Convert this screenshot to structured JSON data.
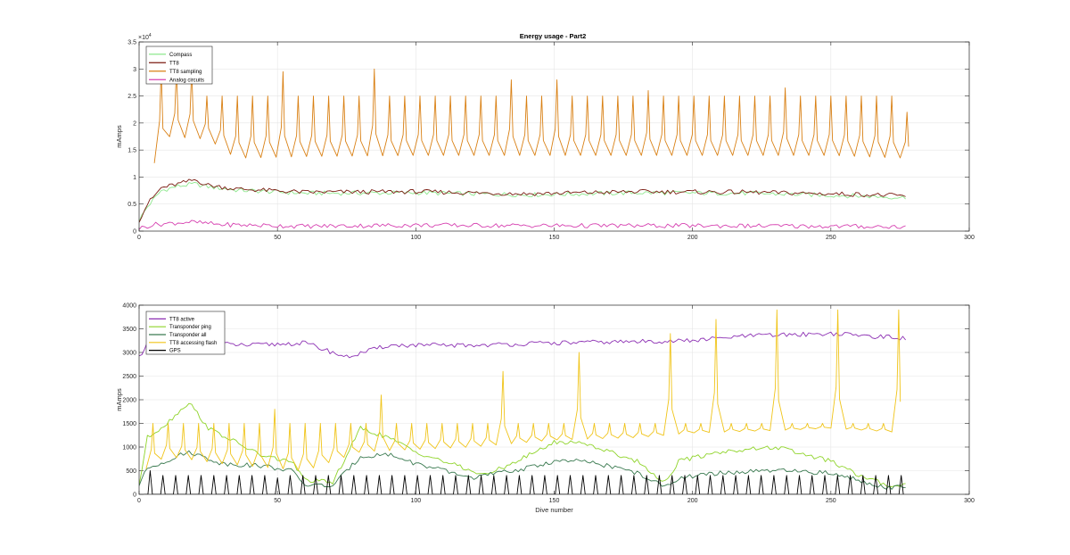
{
  "figure": {
    "title": "Energy usage - Part2"
  },
  "chart_data": [
    {
      "type": "line",
      "title": "Energy usage - Part2",
      "xlabel": "",
      "ylabel": "mAmps",
      "xlim": [
        0,
        300
      ],
      "ylim": [
        0,
        35000
      ],
      "x_ticks": [
        "0",
        "50",
        "100",
        "150",
        "200",
        "250",
        "300"
      ],
      "y_ticks": [
        "0",
        "0.5",
        "1",
        "1.5",
        "2",
        "2.5",
        "3",
        "3.5"
      ],
      "y_exponent": {
        "base": "×10",
        "power": "4"
      },
      "grid": true,
      "legend_position": "top-left",
      "series": [
        {
          "name": "Compass",
          "color": "#8ee88e",
          "shape": "smooth",
          "points": [
            [
              0,
              2000
            ],
            [
              3,
              4500
            ],
            [
              8,
              7500
            ],
            [
              14,
              8300
            ],
            [
              20,
              8700
            ],
            [
              25,
              8200
            ],
            [
              35,
              7600
            ],
            [
              60,
              7000
            ],
            [
              100,
              7100
            ],
            [
              140,
              6700
            ],
            [
              180,
              7100
            ],
            [
              220,
              7000
            ],
            [
              260,
              6500
            ],
            [
              277,
              6200
            ]
          ]
        },
        {
          "name": "TT8",
          "color": "#7b1c12",
          "shape": "smooth",
          "points": [
            [
              0,
              2000
            ],
            [
              3,
              5000
            ],
            [
              8,
              8000
            ],
            [
              14,
              8700
            ],
            [
              20,
              9500
            ],
            [
              25,
              8500
            ],
            [
              35,
              7800
            ],
            [
              60,
              7200
            ],
            [
              100,
              7300
            ],
            [
              140,
              6900
            ],
            [
              180,
              7300
            ],
            [
              220,
              7200
            ],
            [
              260,
              6800
            ],
            [
              277,
              6500
            ]
          ]
        },
        {
          "name": "TT8 sampling",
          "color": "#d98014",
          "shape": "spiky",
          "baseline": [
            [
              0,
              5000
            ],
            [
              5,
              12000
            ],
            [
              10,
              17500
            ],
            [
              25,
              17000
            ],
            [
              35,
              13500
            ],
            [
              60,
              13800
            ],
            [
              100,
              14000
            ],
            [
              150,
              14000
            ],
            [
              200,
              14000
            ],
            [
              250,
              14000
            ],
            [
              277,
              13500
            ]
          ],
          "peaks": [
            [
              10,
              30000
            ],
            [
              15,
              30000
            ],
            [
              20,
              30000
            ],
            [
              30,
              25000
            ],
            [
              51,
              29500
            ],
            [
              86,
              30000
            ],
            [
              136,
              28000
            ],
            [
              152,
              28000
            ],
            [
              184,
              26000
            ],
            [
              236,
              26500
            ],
            [
              277,
              22000
            ]
          ],
          "peak_default": 25000,
          "period": 5.5,
          "start": 8,
          "end": 278
        },
        {
          "name": "Analog circuits",
          "color": "#d640b0",
          "shape": "smooth",
          "points": [
            [
              0,
              500
            ],
            [
              5,
              1200
            ],
            [
              18,
              1700
            ],
            [
              30,
              1200
            ],
            [
              60,
              900
            ],
            [
              100,
              1100
            ],
            [
              150,
              1000
            ],
            [
              200,
              1000
            ],
            [
              250,
              900
            ],
            [
              277,
              800
            ]
          ]
        }
      ]
    },
    {
      "type": "line",
      "title": "",
      "xlabel": "Dive number",
      "ylabel": "mAmps",
      "xlim": [
        0,
        300
      ],
      "ylim": [
        0,
        4000
      ],
      "x_ticks": [
        "0",
        "50",
        "100",
        "150",
        "200",
        "250",
        "300"
      ],
      "y_ticks": [
        "0",
        "500",
        "1000",
        "1500",
        "2000",
        "2500",
        "3000",
        "3500",
        "4000"
      ],
      "grid": true,
      "legend_position": "top-left",
      "series": [
        {
          "name": "TT8 active",
          "color": "#8c2fb3",
          "shape": "smooth",
          "points": [
            [
              0,
              2900
            ],
            [
              3,
              3200
            ],
            [
              20,
              3200
            ],
            [
              40,
              3150
            ],
            [
              60,
              3200
            ],
            [
              75,
              2900
            ],
            [
              90,
              3150
            ],
            [
              120,
              3150
            ],
            [
              150,
              3200
            ],
            [
              200,
              3250
            ],
            [
              220,
              3350
            ],
            [
              250,
              3400
            ],
            [
              277,
              3300
            ]
          ]
        },
        {
          "name": "Transponder ping",
          "color": "#8fd42a",
          "shape": "smooth",
          "points": [
            [
              0,
              200
            ],
            [
              3,
              1200
            ],
            [
              10,
              1500
            ],
            [
              18,
              1950
            ],
            [
              25,
              1400
            ],
            [
              35,
              1100
            ],
            [
              45,
              800
            ],
            [
              55,
              700
            ],
            [
              60,
              300
            ],
            [
              70,
              250
            ],
            [
              80,
              1400
            ],
            [
              90,
              1200
            ],
            [
              100,
              900
            ],
            [
              115,
              600
            ],
            [
              125,
              400
            ],
            [
              140,
              800
            ],
            [
              150,
              1100
            ],
            [
              160,
              1100
            ],
            [
              170,
              900
            ],
            [
              180,
              700
            ],
            [
              190,
              250
            ],
            [
              195,
              700
            ],
            [
              210,
              900
            ],
            [
              230,
              1000
            ],
            [
              240,
              850
            ],
            [
              250,
              700
            ],
            [
              260,
              400
            ],
            [
              270,
              200
            ],
            [
              277,
              200
            ]
          ]
        },
        {
          "name": "Transponder all",
          "color": "#3a7a50",
          "shape": "smooth",
          "points": [
            [
              0,
              200
            ],
            [
              3,
              550
            ],
            [
              18,
              900
            ],
            [
              30,
              650
            ],
            [
              45,
              600
            ],
            [
              55,
              500
            ],
            [
              60,
              200
            ],
            [
              70,
              180
            ],
            [
              80,
              800
            ],
            [
              90,
              850
            ],
            [
              100,
              650
            ],
            [
              110,
              500
            ],
            [
              120,
              350
            ],
            [
              140,
              550
            ],
            [
              150,
              700
            ],
            [
              160,
              700
            ],
            [
              170,
              600
            ],
            [
              180,
              450
            ],
            [
              190,
              150
            ],
            [
              195,
              350
            ],
            [
              210,
              450
            ],
            [
              230,
              500
            ],
            [
              250,
              450
            ],
            [
              260,
              300
            ],
            [
              270,
              150
            ],
            [
              277,
              150
            ]
          ]
        },
        {
          "name": "TT8 accessing flash",
          "color": "#f0c419",
          "shape": "spiky",
          "baseline": [
            [
              0,
              200
            ],
            [
              3,
              600
            ],
            [
              10,
              800
            ],
            [
              30,
              650
            ],
            [
              50,
              550
            ],
            [
              60,
              500
            ],
            [
              80,
              900
            ],
            [
              100,
              950
            ],
            [
              120,
              1000
            ],
            [
              150,
              1150
            ],
            [
              180,
              1200
            ],
            [
              200,
              1300
            ],
            [
              230,
              1350
            ],
            [
              250,
              1400
            ],
            [
              277,
              1300
            ]
          ],
          "peaks": [
            [
              5,
              1500
            ],
            [
              20,
              1500
            ],
            [
              50,
              1800
            ],
            [
              90,
              2100
            ],
            [
              130,
              2600
            ],
            [
              160,
              3000
            ],
            [
              190,
              3400
            ],
            [
              210,
              3700
            ],
            [
              230,
              3900
            ],
            [
              250,
              3900
            ],
            [
              277,
              3900
            ]
          ],
          "peak_default": 1500,
          "period": 5.5,
          "start": 5,
          "end": 278
        },
        {
          "name": "GPS",
          "color": "#000000",
          "shape": "pulses",
          "baseline_value": 0,
          "peaks": [
            [
              0,
              200
            ],
            [
              5,
              500
            ],
            [
              50,
              350
            ],
            [
              100,
              400
            ],
            [
              150,
              400
            ],
            [
              200,
              400
            ],
            [
              250,
              400
            ],
            [
              277,
              400
            ]
          ],
          "peak_default": 400,
          "period": 4.6,
          "start": 4,
          "end": 278
        }
      ]
    }
  ]
}
